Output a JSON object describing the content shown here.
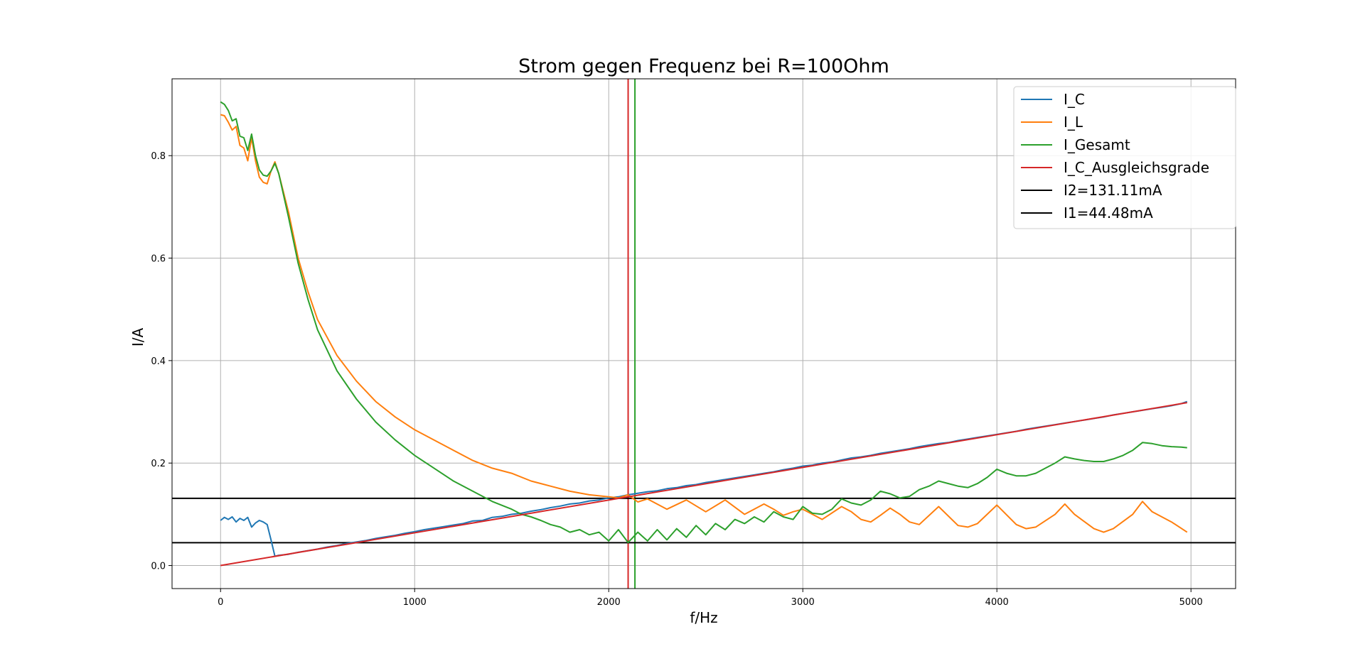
{
  "chart_data": {
    "type": "line",
    "title": "Strom gegen Frequenz bei R=100Ohm",
    "xlabel": "f/Hz",
    "ylabel": "I/A",
    "xlim": [
      -250,
      5230
    ],
    "ylim": [
      -0.045,
      0.95
    ],
    "xticks": [
      0,
      1000,
      2000,
      3000,
      4000,
      5000
    ],
    "xtick_labels": [
      "0",
      "1000",
      "2000",
      "3000",
      "4000",
      "5000"
    ],
    "yticks": [
      0.0,
      0.2,
      0.4,
      0.6,
      0.8
    ],
    "ytick_labels": [
      "0.0",
      "0.2",
      "0.4",
      "0.6",
      "0.8"
    ],
    "grid": true,
    "legend_position": "top-right",
    "legend": [
      "I_C",
      "I_L",
      "I_Gesamt",
      "I_C_Ausgleichsgrade",
      "I2=131.11mA",
      "I1=44.48mA"
    ],
    "series": [
      {
        "name": "I_C",
        "color": "#1f77b4",
        "x": [
          0,
          20,
          40,
          60,
          80,
          100,
          120,
          140,
          160,
          180,
          200,
          220,
          240,
          260,
          280,
          300,
          350,
          400,
          450,
          500,
          550,
          600,
          650,
          700,
          750,
          800,
          850,
          900,
          950,
          1000,
          1050,
          1100,
          1150,
          1200,
          1250,
          1300,
          1350,
          1400,
          1450,
          1500,
          1550,
          1600,
          1650,
          1700,
          1750,
          1800,
          1850,
          1900,
          1950,
          2000,
          2050,
          2100,
          2150,
          2200,
          2250,
          2300,
          2350,
          2400,
          2450,
          2500,
          2550,
          2600,
          2650,
          2700,
          2750,
          2800,
          2850,
          2900,
          2950,
          3000,
          3050,
          3100,
          3150,
          3200,
          3250,
          3300,
          3350,
          3400,
          3450,
          3500,
          3550,
          3600,
          3650,
          3700,
          3750,
          3800,
          3850,
          3900,
          3950,
          4000,
          4050,
          4100,
          4150,
          4200,
          4250,
          4300,
          4350,
          4400,
          4450,
          4500,
          4550,
          4600,
          4650,
          4700,
          4750,
          4800,
          4850,
          4900,
          4950,
          4980
        ],
        "values": [
          0.088,
          0.094,
          0.09,
          0.095,
          0.085,
          0.092,
          0.088,
          0.094,
          0.075,
          0.083,
          0.088,
          0.085,
          0.08,
          0.05,
          0.018,
          0.02,
          0.022,
          0.026,
          0.029,
          0.032,
          0.036,
          0.039,
          0.043,
          0.046,
          0.049,
          0.053,
          0.056,
          0.059,
          0.063,
          0.066,
          0.07,
          0.073,
          0.076,
          0.079,
          0.082,
          0.087,
          0.088,
          0.094,
          0.096,
          0.1,
          0.102,
          0.106,
          0.109,
          0.113,
          0.116,
          0.12,
          0.122,
          0.126,
          0.128,
          0.132,
          0.134,
          0.138,
          0.141,
          0.144,
          0.146,
          0.15,
          0.152,
          0.156,
          0.158,
          0.162,
          0.165,
          0.168,
          0.171,
          0.174,
          0.177,
          0.18,
          0.183,
          0.187,
          0.19,
          0.194,
          0.196,
          0.2,
          0.202,
          0.206,
          0.21,
          0.212,
          0.215,
          0.219,
          0.222,
          0.225,
          0.228,
          0.232,
          0.235,
          0.238,
          0.24,
          0.244,
          0.247,
          0.25,
          0.253,
          0.256,
          0.259,
          0.262,
          0.266,
          0.269,
          0.272,
          0.275,
          0.278,
          0.281,
          0.284,
          0.287,
          0.29,
          0.294,
          0.297,
          0.3,
          0.303,
          0.306,
          0.309,
          0.312,
          0.316,
          0.32
        ]
      },
      {
        "name": "I_L",
        "color": "#ff7f0e",
        "x": [
          0,
          20,
          40,
          60,
          80,
          100,
          120,
          140,
          160,
          180,
          200,
          220,
          240,
          260,
          280,
          300,
          350,
          400,
          450,
          500,
          600,
          700,
          800,
          900,
          1000,
          1100,
          1200,
          1300,
          1400,
          1500,
          1600,
          1700,
          1800,
          1900,
          2000,
          2050,
          2100,
          2150,
          2200,
          2300,
          2400,
          2500,
          2600,
          2700,
          2800,
          2850,
          2900,
          2950,
          3000,
          3100,
          3200,
          3250,
          3300,
          3350,
          3400,
          3450,
          3500,
          3550,
          3600,
          3700,
          3800,
          3850,
          3900,
          4000,
          4100,
          4150,
          4200,
          4300,
          4350,
          4400,
          4500,
          4550,
          4600,
          4700,
          4750,
          4800,
          4900,
          4980
        ],
        "values": [
          0.88,
          0.878,
          0.865,
          0.85,
          0.857,
          0.82,
          0.815,
          0.79,
          0.835,
          0.79,
          0.758,
          0.748,
          0.745,
          0.77,
          0.788,
          0.765,
          0.69,
          0.6,
          0.535,
          0.48,
          0.41,
          0.36,
          0.32,
          0.29,
          0.265,
          0.245,
          0.225,
          0.205,
          0.19,
          0.18,
          0.165,
          0.155,
          0.145,
          0.138,
          0.134,
          0.132,
          0.138,
          0.124,
          0.13,
          0.11,
          0.128,
          0.105,
          0.128,
          0.1,
          0.12,
          0.11,
          0.098,
          0.105,
          0.11,
          0.09,
          0.115,
          0.105,
          0.09,
          0.085,
          0.098,
          0.112,
          0.1,
          0.085,
          0.08,
          0.115,
          0.078,
          0.075,
          0.082,
          0.118,
          0.08,
          0.072,
          0.075,
          0.1,
          0.12,
          0.1,
          0.072,
          0.065,
          0.072,
          0.1,
          0.125,
          0.105,
          0.085,
          0.065
        ]
      },
      {
        "name": "I_Gesamt",
        "color": "#2ca02c",
        "x": [
          0,
          20,
          40,
          60,
          80,
          100,
          120,
          140,
          160,
          180,
          200,
          220,
          240,
          260,
          280,
          300,
          350,
          400,
          450,
          500,
          600,
          700,
          800,
          900,
          1000,
          1100,
          1200,
          1300,
          1400,
          1500,
          1550,
          1600,
          1650,
          1700,
          1750,
          1800,
          1850,
          1900,
          1950,
          2000,
          2050,
          2100,
          2150,
          2200,
          2250,
          2300,
          2350,
          2400,
          2450,
          2500,
          2550,
          2600,
          2650,
          2700,
          2750,
          2800,
          2850,
          2900,
          2950,
          3000,
          3050,
          3100,
          3150,
          3200,
          3250,
          3300,
          3350,
          3400,
          3450,
          3500,
          3550,
          3600,
          3650,
          3700,
          3750,
          3800,
          3850,
          3900,
          3950,
          4000,
          4050,
          4100,
          4150,
          4200,
          4250,
          4300,
          4350,
          4400,
          4450,
          4500,
          4550,
          4600,
          4650,
          4700,
          4750,
          4800,
          4850,
          4900,
          4950,
          4980
        ],
        "values": [
          0.905,
          0.9,
          0.888,
          0.868,
          0.872,
          0.838,
          0.835,
          0.81,
          0.842,
          0.8,
          0.772,
          0.762,
          0.76,
          0.77,
          0.785,
          0.765,
          0.68,
          0.59,
          0.52,
          0.46,
          0.38,
          0.325,
          0.28,
          0.245,
          0.215,
          0.19,
          0.165,
          0.145,
          0.125,
          0.11,
          0.1,
          0.095,
          0.088,
          0.08,
          0.075,
          0.065,
          0.07,
          0.06,
          0.065,
          0.048,
          0.07,
          0.045,
          0.065,
          0.048,
          0.07,
          0.05,
          0.072,
          0.055,
          0.078,
          0.06,
          0.082,
          0.07,
          0.09,
          0.082,
          0.095,
          0.085,
          0.105,
          0.095,
          0.09,
          0.115,
          0.102,
          0.1,
          0.11,
          0.13,
          0.122,
          0.118,
          0.128,
          0.145,
          0.14,
          0.132,
          0.135,
          0.148,
          0.155,
          0.165,
          0.16,
          0.155,
          0.152,
          0.16,
          0.172,
          0.188,
          0.18,
          0.175,
          0.175,
          0.18,
          0.19,
          0.2,
          0.212,
          0.208,
          0.205,
          0.203,
          0.203,
          0.208,
          0.215,
          0.225,
          0.24,
          0.238,
          0.234,
          0.232,
          0.231,
          0.23
        ]
      },
      {
        "name": "I_C_Ausgleichsgrade",
        "color": "#d62728",
        "x": [
          0,
          4980
        ],
        "values": [
          0.0,
          0.318
        ]
      }
    ],
    "hlines": [
      {
        "name": "I2=131.11mA",
        "y": 0.13111,
        "color": "#000000"
      },
      {
        "name": "I1=44.48mA",
        "y": 0.04448,
        "color": "#000000"
      }
    ],
    "vlines": [
      {
        "x": 2100,
        "color": "#d62728"
      },
      {
        "x": 2135,
        "color": "#2ca02c"
      }
    ]
  }
}
